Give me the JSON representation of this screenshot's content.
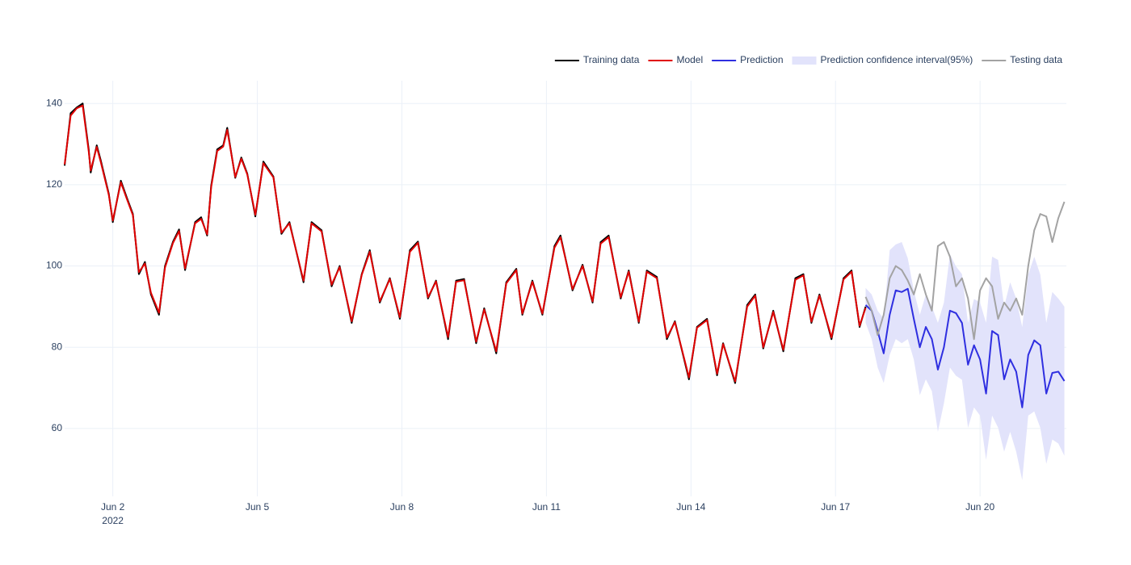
{
  "chart_data": {
    "type": "line",
    "xlim": [
      "2022-06-01T00:00",
      "2022-06-21T19:00"
    ],
    "ylim": [
      43.3,
      145.6
    ],
    "xticks": [
      {
        "value": "2022-06-02T00:00",
        "label": "Jun 2"
      },
      {
        "value": "2022-06-05T00:00",
        "label": "Jun 5"
      },
      {
        "value": "2022-06-08T00:00",
        "label": "Jun 8"
      },
      {
        "value": "2022-06-11T00:00",
        "label": "Jun 11"
      },
      {
        "value": "2022-06-14T00:00",
        "label": "Jun 14"
      },
      {
        "value": "2022-06-17T00:00",
        "label": "Jun 17"
      },
      {
        "value": "2022-06-20T00:00",
        "label": "Jun 20"
      }
    ],
    "xtick_year": "2022",
    "yticks": [
      60,
      80,
      100,
      120,
      140
    ],
    "grid": true,
    "legend_position": "top-right",
    "series": [
      {
        "name": "Training data",
        "color": "#000000",
        "x": [
          "2022-06-01T00:00",
          "2022-06-01T03:00",
          "2022-06-01T06:00",
          "2022-06-01T09:00",
          "2022-06-01T12:00",
          "2022-06-01T13:00",
          "2022-06-01T16:00",
          "2022-06-01T18:00",
          "2022-06-01T22:00",
          "2022-06-02T00:00",
          "2022-06-02T04:00",
          "2022-06-02T07:00",
          "2022-06-02T10:00",
          "2022-06-02T13:00",
          "2022-06-02T16:00",
          "2022-06-02T19:00",
          "2022-06-02T23:00",
          "2022-06-03T02:00",
          "2022-06-03T06:00",
          "2022-06-03T09:00",
          "2022-06-03T12:00",
          "2022-06-03T17:00",
          "2022-06-03T20:00",
          "2022-06-03T23:00",
          "2022-06-04T01:00",
          "2022-06-04T04:00",
          "2022-06-04T07:00",
          "2022-06-04T09:00",
          "2022-06-04T13:00",
          "2022-06-04T16:00",
          "2022-06-04T19:00",
          "2022-06-04T23:00",
          "2022-06-05T03:00",
          "2022-06-05T08:00",
          "2022-06-05T12:00",
          "2022-06-05T16:00",
          "2022-06-05T23:00",
          "2022-06-06T03:00",
          "2022-06-06T08:00",
          "2022-06-06T13:00",
          "2022-06-06T17:00",
          "2022-06-06T23:00",
          "2022-06-07T04:00",
          "2022-06-07T08:00",
          "2022-06-07T13:00",
          "2022-06-07T18:00",
          "2022-06-07T23:00",
          "2022-06-08T04:00",
          "2022-06-08T08:00",
          "2022-06-08T13:00",
          "2022-06-08T17:00",
          "2022-06-08T23:00",
          "2022-06-09T03:00",
          "2022-06-09T07:00",
          "2022-06-09T13:00",
          "2022-06-09T17:00",
          "2022-06-09T23:00",
          "2022-06-10T04:00",
          "2022-06-10T09:00",
          "2022-06-10T12:00",
          "2022-06-10T17:00",
          "2022-06-10T22:00",
          "2022-06-11T04:00",
          "2022-06-11T07:00",
          "2022-06-11T13:00",
          "2022-06-11T18:00",
          "2022-06-11T23:00",
          "2022-06-12T03:00",
          "2022-06-12T07:00",
          "2022-06-12T13:00",
          "2022-06-12T17:00",
          "2022-06-12T22:00",
          "2022-06-13T02:00",
          "2022-06-13T07:00",
          "2022-06-13T12:00",
          "2022-06-13T16:00",
          "2022-06-13T23:00",
          "2022-06-14T03:00",
          "2022-06-14T08:00",
          "2022-06-14T13:00",
          "2022-06-14T16:00",
          "2022-06-14T22:00",
          "2022-06-15T04:00",
          "2022-06-15T08:00",
          "2022-06-15T12:00",
          "2022-06-15T17:00",
          "2022-06-15T22:00",
          "2022-06-16T04:00",
          "2022-06-16T08:00",
          "2022-06-16T12:00",
          "2022-06-16T16:00",
          "2022-06-16T22:00",
          "2022-06-17T04:00",
          "2022-06-17T08:00",
          "2022-06-17T12:00",
          "2022-06-17T15:00"
        ],
        "values": [
          124.7,
          137.6,
          139,
          140,
          128.7,
          123,
          129.7,
          126,
          117.8,
          110.8,
          121,
          116.8,
          112.8,
          98,
          101,
          93,
          88,
          100,
          106,
          109,
          99,
          110.8,
          112,
          107.5,
          119.8,
          128.7,
          129.7,
          134,
          121.7,
          126.7,
          122.7,
          112.2,
          125.7,
          122,
          107.9,
          110.8,
          96,
          110.8,
          108.8,
          95,
          100,
          86,
          98,
          103.9,
          91,
          97,
          87,
          103.9,
          106,
          92,
          96.4,
          82,
          96.4,
          96.8,
          81,
          89.6,
          78.5,
          96,
          99.3,
          88,
          96.4,
          88,
          104.9,
          107.5,
          94,
          100.3,
          91,
          105.9,
          107.5,
          92,
          98.9,
          86,
          98.9,
          97.3,
          82,
          86.4,
          72.1,
          85,
          87,
          73.1,
          81,
          71.2,
          90.4,
          93,
          79.7,
          89,
          79,
          97,
          98,
          86,
          93,
          82,
          97,
          98.9,
          85,
          90
        ]
      },
      {
        "name": "Model",
        "color": "#e00000",
        "x": [
          "2022-06-01T00:00",
          "2022-06-01T03:00",
          "2022-06-01T06:00",
          "2022-06-01T09:00",
          "2022-06-01T12:00",
          "2022-06-01T13:00",
          "2022-06-01T16:00",
          "2022-06-01T18:00",
          "2022-06-01T22:00",
          "2022-06-02T00:00",
          "2022-06-02T04:00",
          "2022-06-02T07:00",
          "2022-06-02T10:00",
          "2022-06-02T13:00",
          "2022-06-02T16:00",
          "2022-06-02T19:00",
          "2022-06-02T23:00",
          "2022-06-03T02:00",
          "2022-06-03T06:00",
          "2022-06-03T09:00",
          "2022-06-03T12:00",
          "2022-06-03T17:00",
          "2022-06-03T20:00",
          "2022-06-03T23:00",
          "2022-06-04T01:00",
          "2022-06-04T04:00",
          "2022-06-04T07:00",
          "2022-06-04T09:00",
          "2022-06-04T13:00",
          "2022-06-04T16:00",
          "2022-06-04T19:00",
          "2022-06-04T23:00",
          "2022-06-05T03:00",
          "2022-06-05T08:00",
          "2022-06-05T12:00",
          "2022-06-05T16:00",
          "2022-06-05T23:00",
          "2022-06-06T03:00",
          "2022-06-06T08:00",
          "2022-06-06T13:00",
          "2022-06-06T17:00",
          "2022-06-06T23:00",
          "2022-06-07T04:00",
          "2022-06-07T08:00",
          "2022-06-07T13:00",
          "2022-06-07T18:00",
          "2022-06-07T23:00",
          "2022-06-08T04:00",
          "2022-06-08T08:00",
          "2022-06-08T13:00",
          "2022-06-08T17:00",
          "2022-06-08T23:00",
          "2022-06-09T03:00",
          "2022-06-09T07:00",
          "2022-06-09T13:00",
          "2022-06-09T17:00",
          "2022-06-09T23:00",
          "2022-06-10T04:00",
          "2022-06-10T09:00",
          "2022-06-10T12:00",
          "2022-06-10T17:00",
          "2022-06-10T22:00",
          "2022-06-11T04:00",
          "2022-06-11T07:00",
          "2022-06-11T13:00",
          "2022-06-11T18:00",
          "2022-06-11T23:00",
          "2022-06-12T03:00",
          "2022-06-12T07:00",
          "2022-06-12T13:00",
          "2022-06-12T17:00",
          "2022-06-12T22:00",
          "2022-06-13T02:00",
          "2022-06-13T07:00",
          "2022-06-13T12:00",
          "2022-06-13T16:00",
          "2022-06-13T23:00",
          "2022-06-14T03:00",
          "2022-06-14T08:00",
          "2022-06-14T13:00",
          "2022-06-14T16:00",
          "2022-06-14T22:00",
          "2022-06-15T04:00",
          "2022-06-15T08:00",
          "2022-06-15T12:00",
          "2022-06-15T17:00",
          "2022-06-15T22:00",
          "2022-06-16T04:00",
          "2022-06-16T08:00",
          "2022-06-16T12:00",
          "2022-06-16T16:00",
          "2022-06-16T22:00",
          "2022-06-17T04:00",
          "2022-06-17T08:00",
          "2022-06-17T12:00",
          "2022-06-17T15:00"
        ],
        "values": [
          125,
          137,
          138.8,
          139.5,
          128.2,
          123.5,
          129.3,
          125.6,
          117.5,
          111.2,
          120.6,
          116.5,
          112.5,
          98.5,
          100.6,
          93.4,
          88.5,
          99.6,
          105.7,
          108.6,
          99.4,
          110.5,
          111.6,
          107.8,
          119.4,
          128.3,
          129.4,
          133.5,
          121.9,
          126.4,
          122.5,
          112.6,
          125.3,
          121.8,
          108.2,
          110.5,
          96.4,
          110.5,
          108.5,
          95.4,
          99.7,
          86.4,
          97.8,
          103.5,
          91.3,
          96.8,
          87.4,
          103.5,
          105.7,
          92.3,
          96.2,
          82.5,
          96.1,
          96.5,
          81.4,
          89.3,
          79,
          95.7,
          99,
          88.3,
          96.1,
          88.3,
          104.5,
          107.1,
          94.3,
          100,
          91.3,
          105.5,
          107.1,
          92.3,
          98.6,
          86.3,
          98.6,
          97,
          82.4,
          86.2,
          72.6,
          84.8,
          86.7,
          73.5,
          80.8,
          71.6,
          90,
          92.7,
          80,
          88.7,
          79.4,
          96.6,
          97.7,
          86.3,
          92.7,
          82.4,
          96.7,
          98.6,
          85.3,
          89.7
        ]
      },
      {
        "name": "Prediction",
        "color": "#2f2fe0",
        "x": [
          "2022-06-17T15:00",
          "2022-06-17T18:00",
          "2022-06-17T21:00",
          "2022-06-18T00:00",
          "2022-06-18T03:00",
          "2022-06-18T06:00",
          "2022-06-18T09:00",
          "2022-06-18T12:00",
          "2022-06-18T15:00",
          "2022-06-18T18:00",
          "2022-06-18T21:00",
          "2022-06-19T00:00",
          "2022-06-19T03:00",
          "2022-06-19T06:00",
          "2022-06-19T09:00",
          "2022-06-19T12:00",
          "2022-06-19T15:00",
          "2022-06-19T18:00",
          "2022-06-19T21:00",
          "2022-06-20T00:00",
          "2022-06-20T03:00",
          "2022-06-20T06:00",
          "2022-06-20T09:00",
          "2022-06-20T12:00",
          "2022-06-20T15:00",
          "2022-06-20T18:00",
          "2022-06-20T21:00",
          "2022-06-21T00:00",
          "2022-06-21T03:00",
          "2022-06-21T06:00",
          "2022-06-21T09:00",
          "2022-06-21T12:00",
          "2022-06-21T15:00",
          "2022-06-21T18:00"
        ],
        "values": [
          90.4,
          89,
          84,
          78.5,
          88,
          94,
          93.6,
          94.4,
          87,
          80,
          85,
          82,
          74.5,
          80,
          89,
          88.4,
          86,
          75.7,
          80.5,
          77,
          68.6,
          84,
          83,
          72.1,
          77,
          74,
          65.2,
          78.1,
          81.7,
          80.5,
          68.6,
          73.7,
          74,
          71.7
        ]
      },
      {
        "name": "Prediction confidence interval(95%)",
        "color": "#e2e3fb",
        "x": [
          "2022-06-17T15:00",
          "2022-06-17T18:00",
          "2022-06-17T21:00",
          "2022-06-18T00:00",
          "2022-06-18T03:00",
          "2022-06-18T06:00",
          "2022-06-18T09:00",
          "2022-06-18T12:00",
          "2022-06-18T15:00",
          "2022-06-18T18:00",
          "2022-06-18T21:00",
          "2022-06-19T00:00",
          "2022-06-19T03:00",
          "2022-06-19T06:00",
          "2022-06-19T09:00",
          "2022-06-19T12:00",
          "2022-06-19T15:00",
          "2022-06-19T18:00",
          "2022-06-19T21:00",
          "2022-06-20T00:00",
          "2022-06-20T03:00",
          "2022-06-20T06:00",
          "2022-06-20T09:00",
          "2022-06-20T12:00",
          "2022-06-20T15:00",
          "2022-06-20T18:00",
          "2022-06-20T21:00",
          "2022-06-21T00:00",
          "2022-06-21T03:00",
          "2022-06-21T06:00",
          "2022-06-21T09:00",
          "2022-06-21T12:00",
          "2022-06-21T15:00",
          "2022-06-21T18:00"
        ],
        "upper": [
          94.6,
          93,
          89,
          87,
          103.9,
          105.3,
          105.9,
          101.9,
          94,
          88,
          93,
          90,
          86,
          91,
          102.9,
          99.9,
          98,
          86,
          91.9,
          91,
          86,
          102.3,
          101.5,
          90,
          96,
          92,
          85,
          97.9,
          102.3,
          97.9,
          86,
          93.6,
          92,
          90
        ],
        "lower": [
          86,
          82,
          75,
          71.2,
          78.1,
          82,
          81,
          82,
          77,
          68.2,
          72.1,
          69.2,
          59.2,
          66.2,
          75,
          73,
          72,
          60.2,
          65.2,
          63.2,
          52.3,
          63.2,
          60.2,
          54.3,
          59.2,
          54.3,
          47.3,
          63.2,
          64.2,
          60.2,
          51.3,
          57.3,
          56.3,
          53.3
        ]
      },
      {
        "name": "Testing data",
        "color": "#a3a3a3",
        "x": [
          "2022-06-17T15:00",
          "2022-06-17T18:00",
          "2022-06-17T21:00",
          "2022-06-18T00:00",
          "2022-06-18T03:00",
          "2022-06-18T06:00",
          "2022-06-18T09:00",
          "2022-06-18T12:00",
          "2022-06-18T15:00",
          "2022-06-18T18:00",
          "2022-06-18T21:00",
          "2022-06-19T00:00",
          "2022-06-19T03:00",
          "2022-06-19T06:00",
          "2022-06-19T09:00",
          "2022-06-19T12:00",
          "2022-06-19T15:00",
          "2022-06-19T18:00",
          "2022-06-19T21:00",
          "2022-06-20T00:00",
          "2022-06-20T03:00",
          "2022-06-20T06:00",
          "2022-06-20T09:00",
          "2022-06-20T12:00",
          "2022-06-20T15:00",
          "2022-06-20T18:00",
          "2022-06-20T21:00",
          "2022-06-21T00:00",
          "2022-06-21T03:00",
          "2022-06-21T06:00",
          "2022-06-21T09:00",
          "2022-06-21T12:00",
          "2022-06-21T15:00",
          "2022-06-21T18:00"
        ],
        "values": [
          92.4,
          89,
          83,
          88,
          97,
          100,
          99,
          96.4,
          93,
          98,
          93,
          89,
          104.9,
          105.9,
          102.3,
          95,
          97,
          92,
          82,
          94,
          97,
          95,
          87,
          91,
          89,
          92,
          88,
          100,
          108.8,
          112.8,
          112.2,
          105.9,
          111.8,
          115.8
        ]
      }
    ]
  }
}
